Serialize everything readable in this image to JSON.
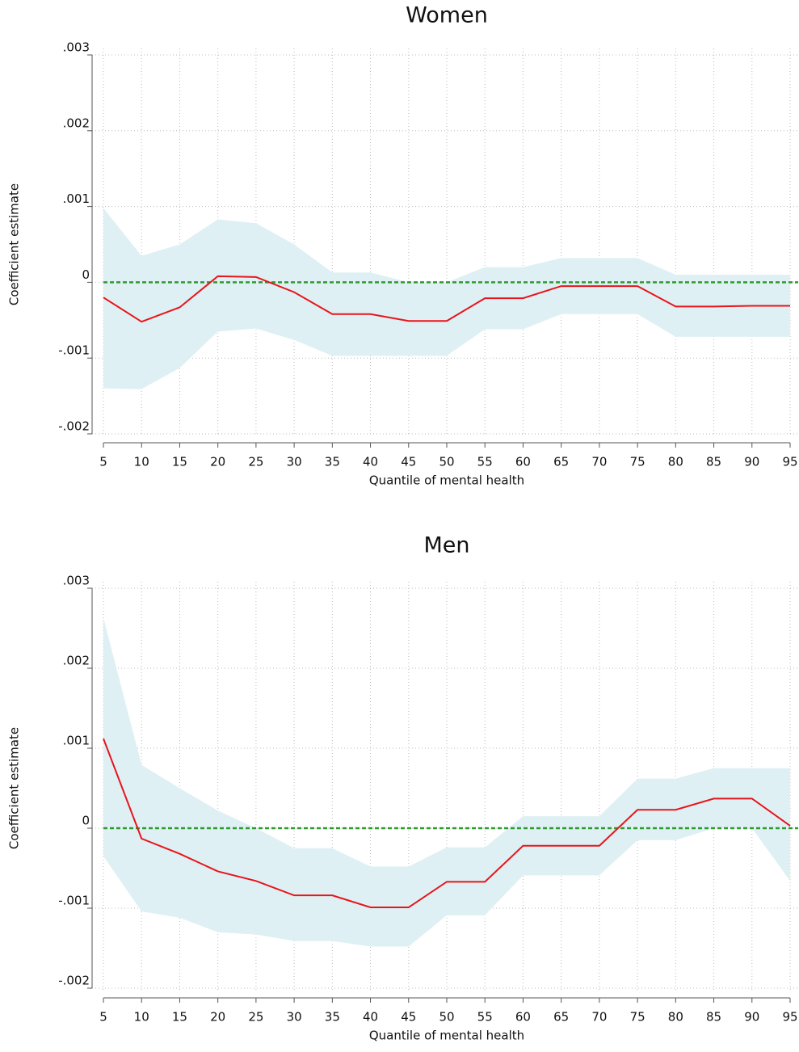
{
  "chart_data": [
    {
      "type": "line",
      "title": "Women",
      "xlabel": "Quantile of mental health",
      "ylabel": "Coefficient estimate",
      "x": [
        5,
        10,
        15,
        20,
        25,
        30,
        35,
        40,
        45,
        50,
        55,
        60,
        65,
        70,
        75,
        80,
        85,
        90,
        95
      ],
      "xlim": [
        5,
        95
      ],
      "xticks": [
        5,
        10,
        15,
        20,
        25,
        30,
        35,
        40,
        45,
        50,
        55,
        60,
        65,
        70,
        75,
        80,
        85,
        90,
        95
      ],
      "ylim": [
        -0.002,
        0.003
      ],
      "yticks": [
        {
          "value": -0.002,
          "label": "-.002"
        },
        {
          "value": -0.001,
          "label": "-.001"
        },
        0,
        {
          "value": 0.001,
          "label": ".001"
        },
        {
          "value": 0.002,
          "label": ".002"
        },
        {
          "value": 0.003,
          "label": ".003"
        }
      ],
      "grid": true,
      "reference_line": 0,
      "reference_color": "#2e9a2e",
      "series": [
        {
          "color": "#e8141a",
          "values": [
            -0.0002,
            -0.00052,
            -0.00033,
            8e-05,
            7e-05,
            -0.00013,
            -0.00042,
            -0.00042,
            -0.00051,
            -0.00051,
            -0.00021,
            -0.00021,
            -5e-05,
            -5e-05,
            -5e-05,
            -0.00032,
            -0.00032,
            -0.00031,
            -0.00031
          ]
        }
      ],
      "band": {
        "color": "#dff0f4",
        "upper": [
          0.00098,
          0.00035,
          0.0005,
          0.00083,
          0.00078,
          0.0005,
          0.00013,
          0.00013,
          0,
          0,
          0.0002,
          0.0002,
          0.00032,
          0.00032,
          0.00032,
          0.0001,
          0.0001,
          0.0001,
          0.0001
        ],
        "lower": [
          -0.0014,
          -0.00141,
          -0.00113,
          -0.00065,
          -0.00061,
          -0.00076,
          -0.00097,
          -0.00097,
          -0.00097,
          -0.00097,
          -0.00062,
          -0.00062,
          -0.00042,
          -0.00042,
          -0.00042,
          -0.00072,
          -0.00072,
          -0.00072,
          -0.00072
        ]
      }
    },
    {
      "type": "line",
      "title": "Men",
      "xlabel": "Quantile of mental health",
      "ylabel": "Coefficient estimate",
      "x": [
        5,
        10,
        15,
        20,
        25,
        30,
        35,
        40,
        45,
        50,
        55,
        60,
        65,
        70,
        75,
        80,
        85,
        90,
        95
      ],
      "xlim": [
        5,
        95
      ],
      "xticks": [
        5,
        10,
        15,
        20,
        25,
        30,
        35,
        40,
        45,
        50,
        55,
        60,
        65,
        70,
        75,
        80,
        85,
        90,
        95
      ],
      "ylim": [
        -0.002,
        0.003
      ],
      "yticks": [
        {
          "value": -0.002,
          "label": "-.002"
        },
        {
          "value": -0.001,
          "label": "-.001"
        },
        0,
        {
          "value": 0.001,
          "label": ".001"
        },
        {
          "value": 0.002,
          "label": ".002"
        },
        {
          "value": 0.003,
          "label": ".003"
        }
      ],
      "grid": true,
      "reference_line": 0,
      "reference_color": "#2e9a2e",
      "series": [
        {
          "color": "#e8141a",
          "values": [
            0.00112,
            -0.00013,
            -0.00032,
            -0.00054,
            -0.00066,
            -0.00084,
            -0.00084,
            -0.00099,
            -0.00099,
            -0.00067,
            -0.00067,
            -0.00022,
            -0.00022,
            -0.00022,
            0.00023,
            0.00023,
            0.00037,
            0.00037,
            3e-05
          ]
        }
      ],
      "band": {
        "color": "#dff0f4",
        "upper": [
          0.00263,
          0.00079,
          0.0005,
          0.00022,
          0,
          -0.00025,
          -0.00025,
          -0.00048,
          -0.00048,
          -0.00024,
          -0.00024,
          0.00015,
          0.00015,
          0.00015,
          0.00062,
          0.00062,
          0.00075,
          0.00075,
          0.00075
        ],
        "lower": [
          -0.00035,
          -0.00104,
          -0.00112,
          -0.0013,
          -0.00133,
          -0.00141,
          -0.00141,
          -0.00148,
          -0.00148,
          -0.00109,
          -0.00109,
          -0.00059,
          -0.00059,
          -0.00059,
          -0.00015,
          -0.00015,
          0,
          0,
          -0.00066
        ]
      }
    }
  ]
}
